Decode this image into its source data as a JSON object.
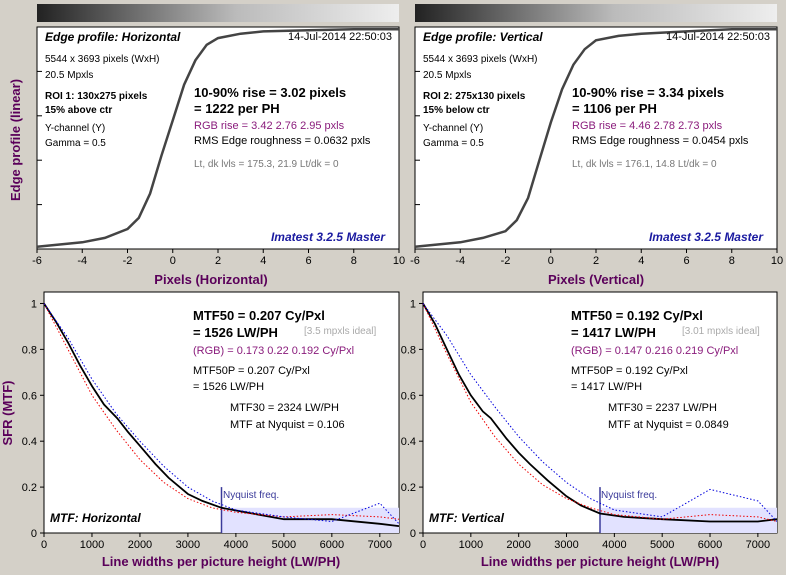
{
  "colors": {
    "background": "#d4d0c8",
    "plot_bg": "#ffffff",
    "axis_label": "#5a005a",
    "text_purple": "#8a1c7c",
    "text_gray": "#777777",
    "brand_blue": "#1a1aa0",
    "nyquist": "#3a3a9a",
    "nyquist_fill": "#e2e2ff",
    "series_main": "#000000",
    "series_red": "#ee0000",
    "series_green": "#00aa00",
    "series_blue": "#0000dd"
  },
  "top_left": {
    "title": "Edge profile: Horizontal",
    "date": "14-Jul-2014 22:50:03",
    "size": "5544 x 3693 pixels (WxH)",
    "mpxls": "20.5 Mpxls",
    "roi": "ROI 1:  130x275 pixels",
    "loc": "15% above ctr",
    "channel": "Y-channel  (Y)",
    "gamma": "Gamma = 0.5",
    "rise": "10-90% rise = 3.02 pixels",
    "per_ph": "= 1222 per PH",
    "rgb_rise": "RGB rise = 3.42  2.76  2.95 pxls",
    "rms": "RMS Edge roughness = 0.0632 pxls",
    "levels": "Lt, dk lvls = 175.3, 21.9    Lt/dk = 0",
    "brand": "Imatest 3.2.5 Master"
  },
  "top_right": {
    "title": "Edge profile: Vertical",
    "date": "14-Jul-2014 22:50:03",
    "size": "5544 x 3693 pixels (WxH)",
    "mpxls": "20.5 Mpxls",
    "roi": "ROI 2:  275x130 pixels",
    "loc": "15% below ctr",
    "channel": "Y-channel  (Y)",
    "gamma": "Gamma = 0.5",
    "rise": "10-90% rise = 3.34 pixels",
    "per_ph": "= 1106 per PH",
    "rgb_rise": "RGB rise = 4.46  2.78  2.73 pxls",
    "rms": "RMS Edge roughness = 0.0454 pxls",
    "levels": "Lt, dk lvls = 176.1, 14.8    Lt/dk = 0",
    "brand": "Imatest 3.2.5 Master"
  },
  "bottom_left": {
    "mtf50": "MTF50 = 0.207 Cy/Pxl",
    "lwph": "= 1526 LW/PH",
    "ideal": "[3.5 mpxls ideal]",
    "rgb": "(RGB) = 0.173  0.22  0.192 Cy/Pxl",
    "mtf50p": "MTF50P = 0.207 Cy/Pxl",
    "mtf50p_lw": "= 1526 LW/PH",
    "mtf30": "MTF30 = 2324 LW/PH",
    "nyq": "MTF at Nyquist = 0.106",
    "label": "MTF: Horizontal",
    "nyq_label": "Nyquist freq."
  },
  "bottom_right": {
    "mtf50": "MTF50 = 0.192 Cy/Pxl",
    "lwph": "= 1417 LW/PH",
    "ideal": "[3.01 mpxls ideal]",
    "rgb": "(RGB) = 0.147  0.216  0.219 Cy/Pxl",
    "mtf50p": "MTF50P = 0.192 Cy/Pxl",
    "mtf50p_lw": "= 1417 LW/PH",
    "mtf30": "MTF30 = 2237 LW/PH",
    "nyq": "MTF at Nyquist = 0.0849",
    "label": "MTF: Vertical",
    "nyq_label": "Nyquist freq."
  },
  "axes": {
    "edge_ylabel": "Edge profile (linear)",
    "edge_xlabel_h": "Pixels (Horizontal)",
    "edge_xlabel_v": "Pixels (Vertical)",
    "sfr_ylabel": "SFR (MTF)",
    "sfr_xlabel": "Line widths per picture height (LW/PH)"
  },
  "chart_data": [
    {
      "type": "line",
      "name": "edge_horizontal",
      "x_ticks": [
        -6,
        -4,
        -2,
        0,
        2,
        4,
        6,
        8,
        10
      ],
      "xlim": [
        -6,
        10
      ],
      "ylim": [
        0,
        1
      ],
      "series": [
        {
          "x": [
            -6,
            -4,
            -3,
            -2,
            -1.5,
            -1,
            -0.5,
            0,
            0.5,
            1,
            1.5,
            2,
            3,
            4,
            6,
            8,
            10
          ],
          "values": [
            0.01,
            0.03,
            0.05,
            0.09,
            0.14,
            0.25,
            0.42,
            0.58,
            0.74,
            0.85,
            0.92,
            0.95,
            0.97,
            0.98,
            0.985,
            0.99,
            0.99
          ]
        }
      ]
    },
    {
      "type": "line",
      "name": "edge_vertical",
      "x_ticks": [
        -6,
        -4,
        -2,
        0,
        2,
        4,
        6,
        8,
        10
      ],
      "xlim": [
        -6,
        10
      ],
      "ylim": [
        0,
        1
      ],
      "series": [
        {
          "x": [
            -6,
            -4,
            -3,
            -2,
            -1.5,
            -1,
            -0.5,
            0,
            0.5,
            1,
            1.5,
            2,
            3,
            4,
            6,
            8,
            10
          ],
          "values": [
            0.01,
            0.03,
            0.05,
            0.08,
            0.13,
            0.23,
            0.4,
            0.57,
            0.72,
            0.83,
            0.9,
            0.94,
            0.96,
            0.97,
            0.98,
            0.99,
            0.99
          ]
        }
      ]
    },
    {
      "type": "line",
      "name": "mtf_horizontal",
      "x_ticks": [
        0,
        1000,
        2000,
        3000,
        4000,
        5000,
        6000,
        7000
      ],
      "xlim": [
        0,
        7400
      ],
      "y_ticks": [
        0,
        0.2,
        0.4,
        0.6,
        0.8,
        1
      ],
      "ylim": [
        0,
        1.05
      ],
      "nyquist_x": 3700,
      "series": [
        {
          "x": [
            0,
            250,
            500,
            750,
            1000,
            1250,
            1526,
            1750,
            2000,
            2324,
            2600,
            3000,
            3300,
            3700,
            4200,
            5000,
            6000,
            7000,
            7400
          ],
          "values": [
            1,
            0.92,
            0.83,
            0.73,
            0.64,
            0.56,
            0.5,
            0.44,
            0.38,
            0.3,
            0.24,
            0.17,
            0.14,
            0.11,
            0.09,
            0.06,
            0.06,
            0.04,
            0.03
          ]
        },
        {
          "x": [
            0,
            500,
            1000,
            1500,
            2000,
            2500,
            3000,
            3500,
            4000,
            5000,
            6000,
            7000,
            7400
          ],
          "values": [
            1,
            0.8,
            0.6,
            0.45,
            0.32,
            0.22,
            0.15,
            0.11,
            0.09,
            0.07,
            0.08,
            0.07,
            0.06
          ]
        },
        {
          "x": [
            0,
            500,
            1000,
            1500,
            2000,
            2500,
            3000,
            3500,
            4000,
            5000,
            6000,
            7000,
            7400
          ],
          "values": [
            1,
            0.85,
            0.67,
            0.52,
            0.4,
            0.29,
            0.2,
            0.14,
            0.1,
            0.07,
            0.05,
            0.13,
            0.04
          ]
        }
      ]
    },
    {
      "type": "line",
      "name": "mtf_vertical",
      "x_ticks": [
        0,
        1000,
        2000,
        3000,
        4000,
        5000,
        6000,
        7000
      ],
      "xlim": [
        0,
        7400
      ],
      "y_ticks": [
        0,
        0.2,
        0.4,
        0.6,
        0.8,
        1
      ],
      "ylim": [
        0,
        1.05
      ],
      "nyquist_x": 3700,
      "series": [
        {
          "x": [
            0,
            250,
            500,
            750,
            1000,
            1250,
            1417,
            1750,
            2000,
            2237,
            2600,
            3000,
            3300,
            3700,
            4200,
            5000,
            6000,
            7000,
            7400
          ],
          "values": [
            1,
            0.91,
            0.8,
            0.69,
            0.6,
            0.53,
            0.5,
            0.41,
            0.35,
            0.3,
            0.23,
            0.16,
            0.12,
            0.085,
            0.07,
            0.06,
            0.05,
            0.05,
            0.06
          ]
        },
        {
          "x": [
            0,
            500,
            1000,
            1500,
            2000,
            2500,
            3000,
            3500,
            4000,
            5000,
            6000,
            7000,
            7400
          ],
          "values": [
            1,
            0.78,
            0.57,
            0.42,
            0.3,
            0.21,
            0.15,
            0.11,
            0.08,
            0.06,
            0.08,
            0.07,
            0.05
          ]
        },
        {
          "x": [
            0,
            500,
            1000,
            1500,
            2000,
            2500,
            3000,
            3500,
            4000,
            5000,
            6000,
            7000,
            7400
          ],
          "values": [
            1,
            0.86,
            0.69,
            0.55,
            0.42,
            0.31,
            0.22,
            0.15,
            0.1,
            0.07,
            0.19,
            0.14,
            0.05
          ]
        }
      ]
    }
  ]
}
